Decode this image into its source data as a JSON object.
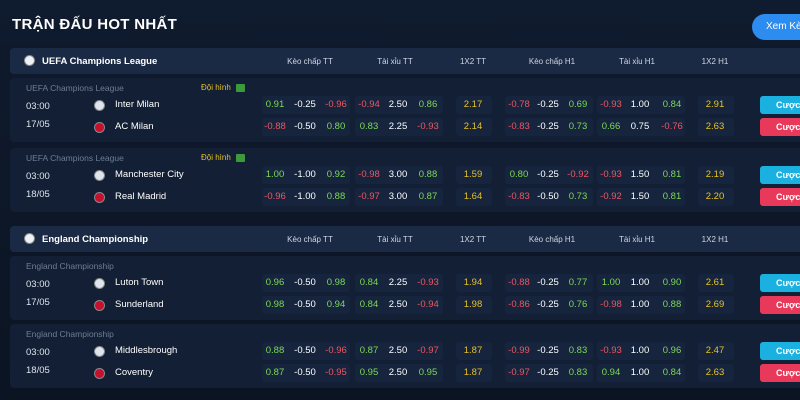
{
  "header": {
    "title": "TRẬN ĐẤU HOT NHẤT",
    "button": "Xem Kèo",
    "bet_button": "Cược"
  },
  "columns": [
    "Kèo chấp TT",
    "Tài xỉu TT",
    "1X2 TT",
    "Kèo chấp H1",
    "Tài xỉu H1",
    "1X2 H1"
  ],
  "sections": [
    {
      "league": "UEFA Champions League",
      "matches": [
        {
          "league": "UEFA Champions League",
          "lineup": "Đội hình",
          "time": "03:00",
          "date": "17/05",
          "teams": [
            {
              "name": "Inter Milan",
              "odds": [
                "0.91",
                "-0.25",
                "-0.96",
                "-0.94",
                "2.50",
                "0.86",
                "2.17",
                "-0.78",
                "-0.25",
                "0.69",
                "-0.93",
                "1.00",
                "0.84",
                "2.91"
              ]
            },
            {
              "name": "AC Milan",
              "odds": [
                "-0.88",
                "-0.50",
                "0.80",
                "0.83",
                "2.25",
                "-0.93",
                "2.14",
                "-0.83",
                "-0.25",
                "0.73",
                "0.66",
                "0.75",
                "-0.76",
                "2.63"
              ]
            }
          ]
        },
        {
          "league": "UEFA Champions League",
          "lineup": "Đội hình",
          "time": "03:00",
          "date": "18/05",
          "teams": [
            {
              "name": "Manchester City",
              "odds": [
                "1.00",
                "-1.00",
                "0.92",
                "-0.98",
                "3.00",
                "0.88",
                "1.59",
                "0.80",
                "-0.25",
                "-0.92",
                "-0.93",
                "1.50",
                "0.81",
                "2.19"
              ]
            },
            {
              "name": "Real Madrid",
              "odds": [
                "-0.96",
                "-1.00",
                "0.88",
                "-0.97",
                "3.00",
                "0.87",
                "1.64",
                "-0.83",
                "-0.50",
                "0.73",
                "-0.92",
                "1.50",
                "0.81",
                "2.20"
              ]
            }
          ]
        }
      ]
    },
    {
      "league": "England Championship",
      "matches": [
        {
          "league": "England Championship",
          "time": "03:00",
          "date": "17/05",
          "teams": [
            {
              "name": "Luton Town",
              "odds": [
                "0.96",
                "-0.50",
                "0.98",
                "0.84",
                "2.25",
                "-0.93",
                "1.94",
                "-0.88",
                "-0.25",
                "0.77",
                "1.00",
                "1.00",
                "0.90",
                "2.61"
              ]
            },
            {
              "name": "Sunderland",
              "odds": [
                "0.98",
                "-0.50",
                "0.94",
                "0.84",
                "2.50",
                "-0.94",
                "1.98",
                "-0.86",
                "-0.25",
                "0.76",
                "-0.98",
                "1.00",
                "0.88",
                "2.69"
              ]
            }
          ]
        },
        {
          "league": "England Championship",
          "time": "03:00",
          "date": "18/05",
          "teams": [
            {
              "name": "Middlesbrough",
              "odds": [
                "0.88",
                "-0.50",
                "-0.96",
                "0.87",
                "2.50",
                "-0.97",
                "1.87",
                "-0.99",
                "-0.25",
                "0.83",
                "-0.93",
                "1.00",
                "0.96",
                "2.47"
              ]
            },
            {
              "name": "Coventry",
              "odds": [
                "0.87",
                "-0.50",
                "-0.95",
                "0.95",
                "2.50",
                "0.95",
                "1.87",
                "-0.97",
                "-0.25",
                "0.83",
                "0.94",
                "1.00",
                "0.84",
                "2.63"
              ]
            }
          ]
        }
      ]
    }
  ]
}
